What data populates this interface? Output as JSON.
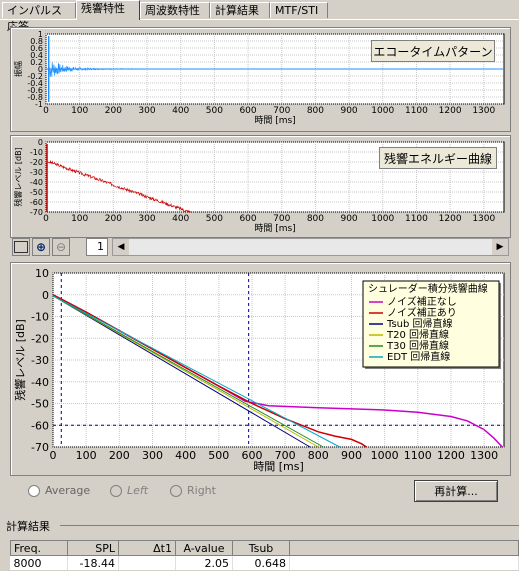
{
  "tabs": [
    {
      "label": "インパルス応答"
    },
    {
      "label": "残響特性"
    },
    {
      "label": "周波数特性"
    },
    {
      "label": "計算結果"
    },
    {
      "label": "MTF/STI"
    }
  ],
  "echo_plot": {
    "button_label": "エコータイムパターン",
    "ylabel": "振幅",
    "xlabel": "時間 [ms]",
    "y_ticks": [
      "1",
      "0.8",
      "0.6",
      "0.4",
      "0.2",
      "0",
      "-0.2",
      "-0.4",
      "-0.6",
      "-0.8",
      "-1"
    ],
    "x_ticks": [
      "0",
      "100",
      "200",
      "300",
      "400",
      "500",
      "600",
      "700",
      "800",
      "900",
      "1000",
      "1100",
      "1200",
      "1300"
    ],
    "color": "#1e90ff"
  },
  "energy_plot": {
    "button_label": "残響エネルギー曲線",
    "ylabel": "残響レベル [dB]",
    "xlabel": "時間 [ms]",
    "y_ticks": [
      "0",
      "-10",
      "-20",
      "-30",
      "-40",
      "-50",
      "-60",
      "-70"
    ],
    "x_ticks": [
      "0",
      "100",
      "200",
      "300",
      "400",
      "500",
      "600",
      "700",
      "800",
      "900",
      "1000",
      "1100",
      "1200",
      "1300"
    ],
    "color": "#cc0000"
  },
  "toolbar": {
    "page_value": "1",
    "icons": [
      "fit-icon",
      "zoom-in-icon",
      "zoom-out-icon"
    ]
  },
  "chart_data": {
    "type": "line",
    "title": "",
    "xlabel": "時間 [ms]",
    "ylabel": "残響レベル [dB]",
    "xlim": [
      0,
      1360
    ],
    "ylim": [
      -70,
      10
    ],
    "x_ticks": [
      0,
      100,
      200,
      300,
      400,
      500,
      600,
      700,
      800,
      900,
      1000,
      1100,
      1200,
      1300
    ],
    "y_ticks": [
      10,
      0,
      -10,
      -20,
      -30,
      -40,
      -50,
      -60,
      -70
    ],
    "grid": true,
    "legend_title": "シュレーダー積分残響曲線",
    "legend_position": "top-right",
    "markers": {
      "vertical_ms": [
        25,
        590
      ],
      "horizontal_db": -60
    },
    "series": [
      {
        "name": "ノイズ補正なし",
        "color": "#cc00cc",
        "x": [
          0,
          100,
          200,
          300,
          400,
          500,
          580,
          650,
          800,
          1000,
          1100,
          1200,
          1250,
          1300,
          1330,
          1355
        ],
        "y": [
          0,
          -8,
          -16.5,
          -25,
          -33.5,
          -42,
          -49,
          -51,
          -52,
          -53,
          -54,
          -56,
          -58,
          -62,
          -66,
          -70
        ]
      },
      {
        "name": "ノイズ補正あり",
        "color": "#cc0000",
        "x": [
          0,
          100,
          200,
          300,
          400,
          500,
          600,
          700,
          800,
          850,
          900,
          930,
          945
        ],
        "y": [
          0,
          -8,
          -16.5,
          -25,
          -33.5,
          -42,
          -50,
          -57,
          -63,
          -65,
          -66.5,
          -68.5,
          -70
        ]
      },
      {
        "name": "Tsub 回帰直線",
        "color": "#000080",
        "x": [
          0,
          775
        ],
        "y": [
          -0.5,
          -70
        ]
      },
      {
        "name": "T20 回帰直線",
        "color": "#b8b800",
        "x": [
          0,
          800
        ],
        "y": [
          -0.5,
          -70
        ]
      },
      {
        "name": "T30 回帰直線",
        "color": "#228b22",
        "x": [
          0,
          815
        ],
        "y": [
          -0.5,
          -70
        ]
      },
      {
        "name": "EDT 回帰直線",
        "color": "#00aacc",
        "x": [
          0,
          865
        ],
        "y": [
          -0.5,
          -70
        ]
      }
    ]
  },
  "options": {
    "radio_average": "Average",
    "radio_left": "Left",
    "radio_right": "Right",
    "recalc_label": "再計算..."
  },
  "results": {
    "title": "計算結果",
    "headers": [
      "Freq.",
      "SPL",
      "Δt1",
      "A-value",
      "Tsub"
    ],
    "rows": [
      [
        "8000",
        "-18.44",
        "",
        "2.05",
        "0.648"
      ]
    ]
  }
}
